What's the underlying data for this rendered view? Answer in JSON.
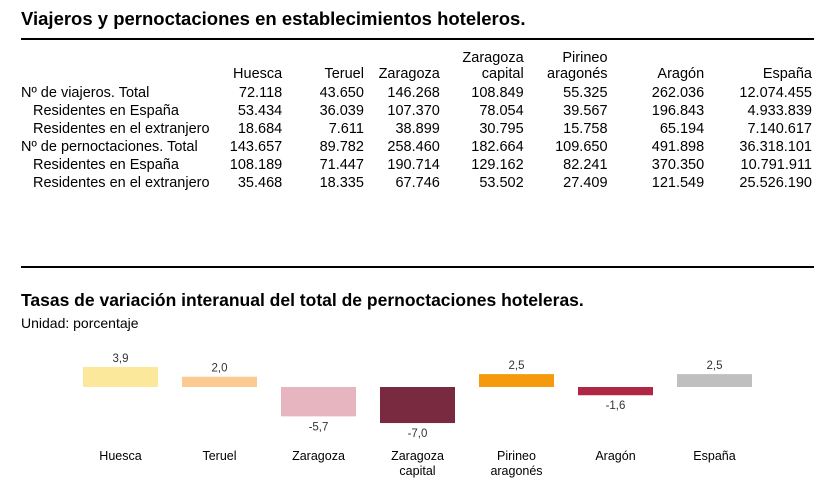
{
  "table_title": "Viajeros y pernoctaciones en establecimientos hoteleros.",
  "columns": [
    [
      "Huesca"
    ],
    [
      "Teruel"
    ],
    [
      "Zaragoza"
    ],
    [
      "Zaragoza",
      "capital"
    ],
    [
      "Pirineo",
      "aragonés"
    ],
    [
      "Aragón"
    ],
    [
      "España"
    ]
  ],
  "rows": [
    {
      "label": "Nº de viajeros. Total",
      "sub": false,
      "values": [
        "72.118",
        "43.650",
        "146.268",
        "108.849",
        "55.325",
        "262.036",
        "12.074.455"
      ]
    },
    {
      "label": "Residentes en España",
      "sub": true,
      "values": [
        "53.434",
        "36.039",
        "107.370",
        "78.054",
        "39.567",
        "196.843",
        "4.933.839"
      ]
    },
    {
      "label": "Residentes en el extranjero",
      "sub": true,
      "values": [
        "18.684",
        "7.611",
        "38.899",
        "30.795",
        "15.758",
        "65.194",
        "7.140.617"
      ]
    },
    {
      "label": "Nº de pernoctaciones. Total",
      "sub": false,
      "values": [
        "143.657",
        "89.782",
        "258.460",
        "182.664",
        "109.650",
        "491.898",
        "36.318.101"
      ]
    },
    {
      "label": "Residentes en España",
      "sub": true,
      "values": [
        "108.189",
        "71.447",
        "190.714",
        "129.162",
        "82.241",
        "370.350",
        "10.791.911"
      ]
    },
    {
      "label": "Residentes en el extranjero",
      "sub": true,
      "values": [
        "35.468",
        "18.335",
        "67.746",
        "53.502",
        "27.409",
        "121.549",
        "25.526.190"
      ]
    }
  ],
  "chart_data": {
    "type": "bar",
    "title": "Tasas de variación interanual del total de pernoctaciones hoteleras.",
    "subtitle": "Unidad: porcentaje",
    "categories": [
      [
        "Huesca"
      ],
      [
        "Teruel"
      ],
      [
        "Zaragoza"
      ],
      [
        "Zaragoza",
        "capital"
      ],
      [
        "Pirineo",
        "aragonés"
      ],
      [
        "Aragón"
      ],
      [
        "España"
      ]
    ],
    "values": [
      3.9,
      2.0,
      -5.7,
      -7.0,
      2.5,
      -1.6,
      2.5
    ],
    "value_labels": [
      "3,9",
      "2,0",
      "-5,7",
      "-7,0",
      "2,5",
      "-1,6",
      "2,5"
    ],
    "colors": [
      "#fce89a",
      "#fbcb92",
      "#e6b5c0",
      "#7a2a40",
      "#f59a0c",
      "#b02746",
      "#bfbfbf"
    ],
    "grid": false,
    "legend": "none"
  }
}
